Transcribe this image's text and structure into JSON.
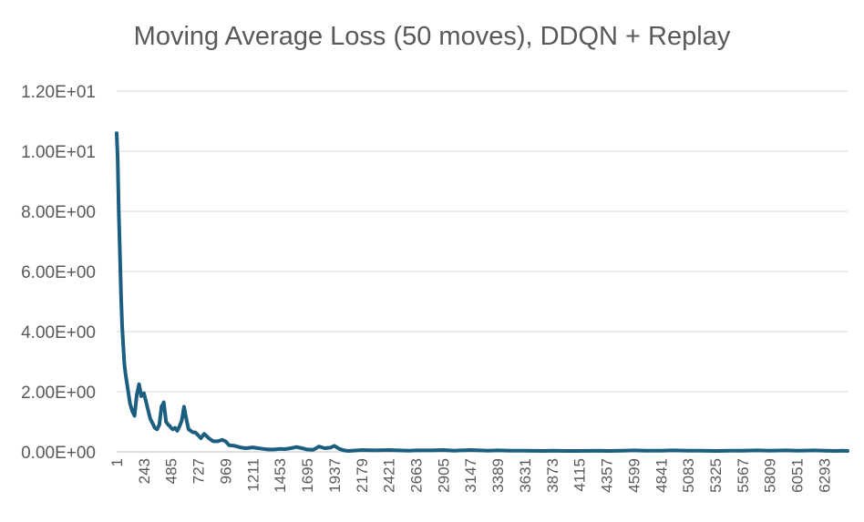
{
  "chart_data": {
    "type": "line",
    "title": "Moving Average Loss (50 moves), DDQN + Replay",
    "xlabel": "",
    "ylabel": "",
    "x_tick_labels": [
      "1",
      "243",
      "485",
      "727",
      "969",
      "1211",
      "1453",
      "1695",
      "1937",
      "2179",
      "2421",
      "2663",
      "2905",
      "3147",
      "3389",
      "3631",
      "3873",
      "4115",
      "4357",
      "4599",
      "4841",
      "5083",
      "5325",
      "5567",
      "5809",
      "6051",
      "6293"
    ],
    "y_tick_labels": [
      "0.00E+00",
      "2.00E+00",
      "4.00E+00",
      "6.00E+00",
      "8.00E+00",
      "1.00E+01",
      "1.20E+01"
    ],
    "ylim": [
      0,
      12
    ],
    "xlim": [
      1,
      6500
    ],
    "grid": "horizontal",
    "series": [
      {
        "color": "#1b5e80",
        "x": [
          1,
          10,
          20,
          30,
          40,
          50,
          60,
          70,
          80,
          100,
          120,
          140,
          160,
          180,
          200,
          220,
          243,
          260,
          280,
          300,
          320,
          340,
          360,
          380,
          400,
          420,
          440,
          460,
          475,
          485,
          500,
          520,
          540,
          560,
          580,
          600,
          620,
          640,
          660,
          680,
          700,
          727,
          750,
          780,
          820,
          860,
          900,
          940,
          969,
          1000,
          1050,
          1100,
          1150,
          1211,
          1260,
          1300,
          1350,
          1400,
          1453,
          1500,
          1550,
          1600,
          1650,
          1695,
          1750,
          1800,
          1850,
          1900,
          1937,
          1980,
          2020,
          2060,
          2100,
          2179,
          2300,
          2421,
          2500,
          2600,
          2663,
          2800,
          2905,
          3000,
          3147,
          3300,
          3389,
          3500,
          3631,
          3800,
          3873,
          4000,
          4115,
          4300,
          4357,
          4500,
          4599,
          4700,
          4841,
          4950,
          5083,
          5200,
          5325,
          5450,
          5567,
          5700,
          5809,
          5950,
          6051,
          6200,
          6293,
          6400,
          6450,
          6500
        ],
        "y": [
          10.6,
          9.8,
          8.0,
          6.6,
          5.2,
          4.2,
          3.5,
          2.9,
          2.6,
          2.1,
          1.6,
          1.35,
          1.2,
          1.9,
          2.25,
          1.85,
          1.95,
          1.7,
          1.4,
          1.1,
          0.95,
          0.8,
          0.75,
          0.9,
          1.5,
          1.65,
          1.0,
          0.9,
          0.85,
          0.8,
          0.75,
          0.8,
          0.7,
          0.85,
          1.05,
          1.5,
          1.1,
          0.75,
          0.7,
          0.65,
          0.65,
          0.55,
          0.45,
          0.6,
          0.45,
          0.35,
          0.35,
          0.4,
          0.35,
          0.22,
          0.2,
          0.15,
          0.12,
          0.15,
          0.12,
          0.1,
          0.08,
          0.08,
          0.1,
          0.09,
          0.12,
          0.16,
          0.12,
          0.08,
          0.07,
          0.18,
          0.12,
          0.14,
          0.2,
          0.1,
          0.05,
          0.03,
          0.04,
          0.06,
          0.05,
          0.06,
          0.05,
          0.04,
          0.05,
          0.05,
          0.06,
          0.04,
          0.06,
          0.04,
          0.05,
          0.04,
          0.04,
          0.03,
          0.04,
          0.03,
          0.03,
          0.04,
          0.03,
          0.04,
          0.05,
          0.04,
          0.04,
          0.05,
          0.04,
          0.04,
          0.03,
          0.04,
          0.04,
          0.05,
          0.04,
          0.05,
          0.04,
          0.05,
          0.04,
          0.03,
          0.04,
          0.03
        ]
      }
    ]
  }
}
